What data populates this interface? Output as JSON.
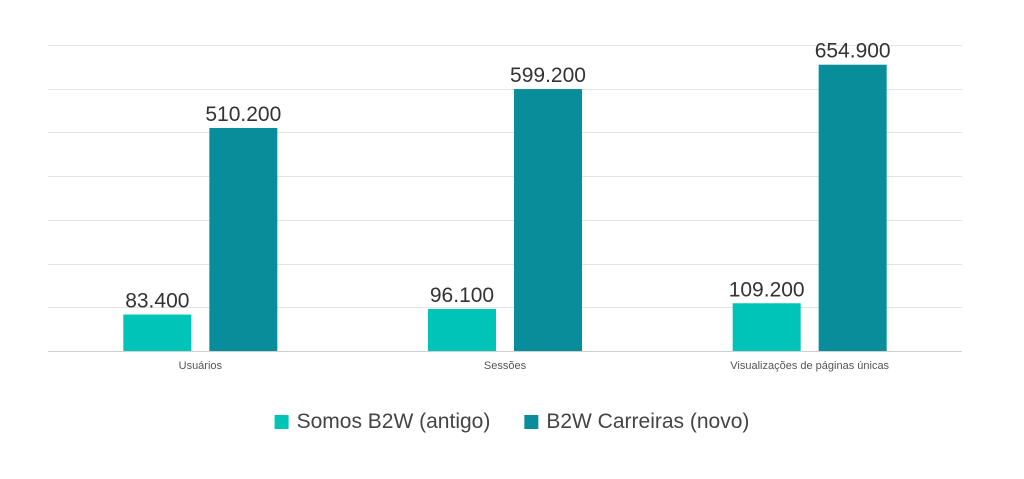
{
  "chart_data": {
    "type": "bar",
    "title": "",
    "xlabel": "",
    "ylabel": "",
    "categories": [
      "Usuários",
      "Sessões",
      "Visualizações de páginas únicas"
    ],
    "series": [
      {
        "name": "Somos B2W (antigo)",
        "color": "#00c4b8",
        "values": [
          83400,
          96100,
          109200
        ],
        "labels": [
          "83.400",
          "96.100",
          "109.200"
        ]
      },
      {
        "name": "B2W Carreiras (novo)",
        "color": "#078e9a",
        "values": [
          510200,
          599200,
          654900
        ],
        "labels": [
          "510.200",
          "599.200",
          "654.900"
        ]
      }
    ],
    "ylim": [
      0,
      700000
    ],
    "y_gridline_step": 100000,
    "y_tick_labels_visible": false,
    "grid": true,
    "legend_position": "bottom"
  }
}
